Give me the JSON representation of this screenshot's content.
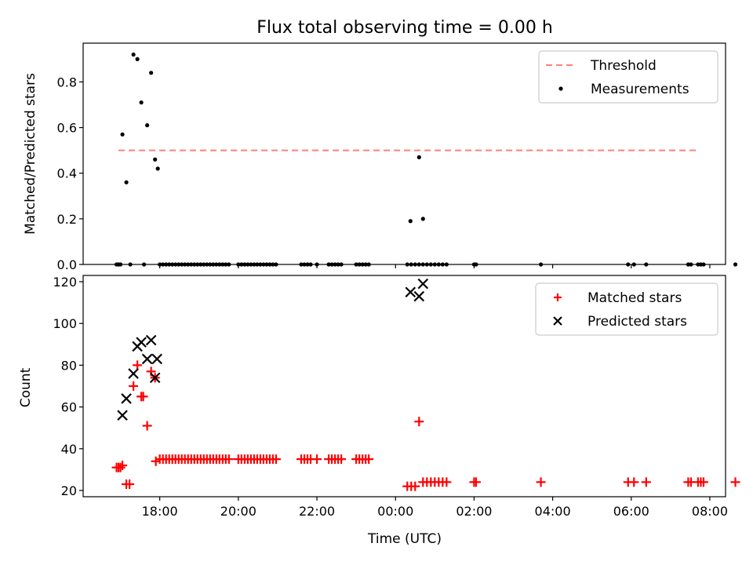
{
  "chart_data": [
    {
      "type": "scatter",
      "title": "Flux total observing time = 0.00 h",
      "xlabel": "",
      "ylabel": "Matched/Predicted stars",
      "x_unit": "hours after 17:00 UTC",
      "xlim": [
        -0.95,
        15.4
      ],
      "ylim": [
        0,
        0.97
      ],
      "yticks": [
        0.0,
        0.2,
        0.4,
        0.6,
        0.8
      ],
      "ytick_labels": [
        "0.0",
        "0.2",
        "0.4",
        "0.6",
        "0.8"
      ],
      "xticks": [
        1,
        3,
        5,
        7,
        9,
        11,
        13,
        15
      ],
      "show_xtick_labels": false,
      "legend_position": "top-right",
      "threshold": {
        "name": "Threshold",
        "value": 0.5,
        "x": [
          -0.05,
          14.65
        ],
        "color": "#ff7f7f",
        "style": "dashed"
      },
      "series": [
        {
          "name": "Measurements",
          "marker": "dot",
          "color": "#000000",
          "points": [
            [
              0.05,
              0.57
            ],
            [
              0.15,
              0.36
            ],
            [
              0.33,
              0.92
            ],
            [
              0.43,
              0.9
            ],
            [
              0.53,
              0.71
            ],
            [
              0.68,
              0.61
            ],
            [
              0.78,
              0.84
            ],
            [
              0.88,
              0.46
            ],
            [
              0.95,
              0.42
            ],
            [
              7.38,
              0.19
            ],
            [
              7.6,
              0.47
            ],
            [
              7.7,
              0.2
            ],
            [
              -0.1,
              0
            ],
            [
              -0.05,
              0
            ],
            [
              0.0,
              0
            ],
            [
              0.25,
              0
            ],
            [
              0.6,
              0
            ],
            [
              1.0,
              0
            ],
            [
              1.08,
              0
            ],
            [
              1.16,
              0
            ],
            [
              1.24,
              0
            ],
            [
              1.32,
              0
            ],
            [
              1.4,
              0
            ],
            [
              1.48,
              0
            ],
            [
              1.56,
              0
            ],
            [
              1.64,
              0
            ],
            [
              1.72,
              0
            ],
            [
              1.8,
              0
            ],
            [
              1.88,
              0
            ],
            [
              1.96,
              0
            ],
            [
              2.04,
              0
            ],
            [
              2.12,
              0
            ],
            [
              2.2,
              0
            ],
            [
              2.28,
              0
            ],
            [
              2.36,
              0
            ],
            [
              2.44,
              0
            ],
            [
              2.52,
              0
            ],
            [
              2.6,
              0
            ],
            [
              2.68,
              0
            ],
            [
              2.76,
              0
            ],
            [
              3.0,
              0
            ],
            [
              3.08,
              0
            ],
            [
              3.16,
              0
            ],
            [
              3.24,
              0
            ],
            [
              3.32,
              0
            ],
            [
              3.4,
              0
            ],
            [
              3.48,
              0
            ],
            [
              3.56,
              0
            ],
            [
              3.64,
              0
            ],
            [
              3.72,
              0
            ],
            [
              3.8,
              0
            ],
            [
              3.88,
              0
            ],
            [
              3.96,
              0
            ],
            [
              4.6,
              0
            ],
            [
              4.68,
              0
            ],
            [
              4.76,
              0
            ],
            [
              4.84,
              0
            ],
            [
              5.0,
              0
            ],
            [
              5.3,
              0
            ],
            [
              5.38,
              0
            ],
            [
              5.46,
              0
            ],
            [
              5.54,
              0
            ],
            [
              5.62,
              0
            ],
            [
              6.0,
              0
            ],
            [
              6.08,
              0
            ],
            [
              6.16,
              0
            ],
            [
              6.24,
              0
            ],
            [
              6.32,
              0
            ],
            [
              7.3,
              0
            ],
            [
              7.4,
              0
            ],
            [
              7.5,
              0
            ],
            [
              7.6,
              0
            ],
            [
              7.7,
              0
            ],
            [
              7.8,
              0
            ],
            [
              7.9,
              0
            ],
            [
              8.0,
              0
            ],
            [
              8.1,
              0
            ],
            [
              8.2,
              0
            ],
            [
              8.3,
              0
            ],
            [
              9.0,
              0
            ],
            [
              9.05,
              0
            ],
            [
              10.7,
              0
            ],
            [
              12.92,
              0
            ],
            [
              13.07,
              0
            ],
            [
              13.38,
              0
            ],
            [
              14.45,
              0
            ],
            [
              14.52,
              0
            ],
            [
              14.7,
              0
            ],
            [
              14.77,
              0
            ],
            [
              14.84,
              0
            ],
            [
              15.65,
              0
            ]
          ]
        }
      ]
    },
    {
      "type": "scatter",
      "title": "",
      "xlabel": "Time (UTC)",
      "ylabel": "Count",
      "x_unit": "hours after 17:00 UTC",
      "xlim": [
        -0.95,
        15.4
      ],
      "ylim": [
        17,
        123
      ],
      "yticks": [
        20,
        40,
        60,
        80,
        100,
        120
      ],
      "ytick_labels": [
        "20",
        "40",
        "60",
        "80",
        "100",
        "120"
      ],
      "xticks": [
        1,
        3,
        5,
        7,
        9,
        11,
        13,
        15
      ],
      "xtick_labels": [
        "18:00",
        "20:00",
        "22:00",
        "00:00",
        "02:00",
        "04:00",
        "06:00",
        "08:00"
      ],
      "legend_position": "top-right",
      "series": [
        {
          "name": "Matched stars",
          "marker": "plus",
          "color": "#ff0000",
          "points": [
            [
              -0.1,
              31
            ],
            [
              -0.05,
              31
            ],
            [
              0.0,
              31
            ],
            [
              0.05,
              32
            ],
            [
              0.15,
              23
            ],
            [
              0.23,
              23
            ],
            [
              0.33,
              70
            ],
            [
              0.43,
              80
            ],
            [
              0.53,
              65
            ],
            [
              0.58,
              65
            ],
            [
              0.68,
              51
            ],
            [
              0.78,
              77
            ],
            [
              0.88,
              74
            ],
            [
              0.9,
              34
            ],
            [
              1.0,
              35
            ],
            [
              1.08,
              35
            ],
            [
              1.16,
              35
            ],
            [
              1.24,
              35
            ],
            [
              1.32,
              35
            ],
            [
              1.4,
              35
            ],
            [
              1.48,
              35
            ],
            [
              1.56,
              35
            ],
            [
              1.64,
              35
            ],
            [
              1.72,
              35
            ],
            [
              1.8,
              35
            ],
            [
              1.88,
              35
            ],
            [
              1.96,
              35
            ],
            [
              2.04,
              35
            ],
            [
              2.12,
              35
            ],
            [
              2.2,
              35
            ],
            [
              2.28,
              35
            ],
            [
              2.36,
              35
            ],
            [
              2.44,
              35
            ],
            [
              2.52,
              35
            ],
            [
              2.6,
              35
            ],
            [
              2.68,
              35
            ],
            [
              2.76,
              35
            ],
            [
              3.0,
              35
            ],
            [
              3.08,
              35
            ],
            [
              3.16,
              35
            ],
            [
              3.24,
              35
            ],
            [
              3.32,
              35
            ],
            [
              3.4,
              35
            ],
            [
              3.48,
              35
            ],
            [
              3.56,
              35
            ],
            [
              3.64,
              35
            ],
            [
              3.72,
              35
            ],
            [
              3.8,
              35
            ],
            [
              3.88,
              35
            ],
            [
              3.96,
              35
            ],
            [
              4.6,
              35
            ],
            [
              4.68,
              35
            ],
            [
              4.76,
              35
            ],
            [
              4.84,
              35
            ],
            [
              5.0,
              35
            ],
            [
              5.3,
              35
            ],
            [
              5.38,
              35
            ],
            [
              5.46,
              35
            ],
            [
              5.54,
              35
            ],
            [
              5.62,
              35
            ],
            [
              6.0,
              35
            ],
            [
              6.08,
              35
            ],
            [
              6.16,
              35
            ],
            [
              6.24,
              35
            ],
            [
              6.32,
              35
            ],
            [
              7.3,
              22
            ],
            [
              7.4,
              22
            ],
            [
              7.5,
              22
            ],
            [
              7.6,
              53
            ],
            [
              7.7,
              24
            ],
            [
              7.8,
              24
            ],
            [
              7.9,
              24
            ],
            [
              8.0,
              24
            ],
            [
              8.1,
              24
            ],
            [
              8.2,
              24
            ],
            [
              8.3,
              24
            ],
            [
              9.0,
              24
            ],
            [
              9.05,
              24
            ],
            [
              10.7,
              24
            ],
            [
              12.92,
              24
            ],
            [
              13.07,
              24
            ],
            [
              13.38,
              24
            ],
            [
              14.45,
              24
            ],
            [
              14.52,
              24
            ],
            [
              14.7,
              24
            ],
            [
              14.77,
              24
            ],
            [
              14.84,
              24
            ],
            [
              15.65,
              24
            ]
          ]
        },
        {
          "name": "Predicted stars",
          "marker": "x",
          "color": "#000000",
          "points": [
            [
              0.05,
              56
            ],
            [
              0.15,
              64
            ],
            [
              0.33,
              76
            ],
            [
              0.43,
              89
            ],
            [
              0.53,
              91
            ],
            [
              0.68,
              83
            ],
            [
              0.78,
              92
            ],
            [
              0.88,
              74
            ],
            [
              0.93,
              83
            ],
            [
              7.38,
              115
            ],
            [
              7.6,
              113
            ],
            [
              7.7,
              119
            ]
          ]
        }
      ]
    }
  ]
}
